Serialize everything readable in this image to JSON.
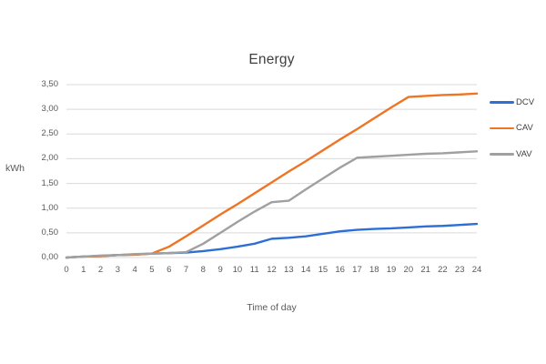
{
  "page": {
    "background": "#ffffff"
  },
  "chart": {
    "colors": {
      "gridline": "#d9d9d9",
      "tick_text": "#595959",
      "title_text": "#404040",
      "legend_text": "#404040"
    }
  },
  "chart_data": {
    "type": "line",
    "title": "Energy",
    "xlabel": "Time of day",
    "ylabel": "kWh",
    "xlim": [
      0,
      24
    ],
    "ylim": [
      0,
      3.5
    ],
    "grid": true,
    "legend_position": "right",
    "x": [
      0,
      1,
      2,
      3,
      4,
      5,
      6,
      7,
      8,
      9,
      10,
      11,
      12,
      13,
      14,
      15,
      16,
      17,
      18,
      19,
      20,
      21,
      22,
      23,
      24
    ],
    "x_tick_labels": [
      "0",
      "1",
      "2",
      "3",
      "4",
      "5",
      "6",
      "7",
      "8",
      "9",
      "10",
      "11",
      "12",
      "13",
      "14",
      "15",
      "16",
      "17",
      "18",
      "19",
      "20",
      "21",
      "22",
      "23",
      "24"
    ],
    "y_ticks": {
      "values": [
        0,
        0.5,
        1,
        1.5,
        2,
        2.5,
        3,
        3.5
      ],
      "labels": [
        "0,00",
        "0,50",
        "1,00",
        "1,50",
        "2,00",
        "2,50",
        "3,00",
        "3,50"
      ]
    },
    "series": [
      {
        "name": "DCV",
        "color": "#2e6fd6",
        "values": [
          0,
          0.02,
          0.03,
          0.05,
          0.06,
          0.08,
          0.09,
          0.1,
          0.13,
          0.17,
          0.22,
          0.28,
          0.38,
          0.4,
          0.43,
          0.48,
          0.53,
          0.56,
          0.58,
          0.59,
          0.61,
          0.63,
          0.64,
          0.66,
          0.68
        ]
      },
      {
        "name": "CAV",
        "color": "#ed7524",
        "values": [
          0,
          0.02,
          0.03,
          0.05,
          0.06,
          0.08,
          0.22,
          0.43,
          0.65,
          0.87,
          1.08,
          1.3,
          1.52,
          1.74,
          1.95,
          2.17,
          2.39,
          2.6,
          2.82,
          3.04,
          3.25,
          3.27,
          3.29,
          3.3,
          3.32
        ]
      },
      {
        "name": "VAV",
        "color": "#a0a0a0",
        "values": [
          0,
          0.02,
          0.04,
          0.05,
          0.07,
          0.08,
          0.09,
          0.11,
          0.28,
          0.5,
          0.72,
          0.93,
          1.12,
          1.15,
          1.38,
          1.6,
          1.82,
          2.02,
          2.04,
          2.06,
          2.08,
          2.1,
          2.11,
          2.13,
          2.15
        ]
      }
    ]
  }
}
